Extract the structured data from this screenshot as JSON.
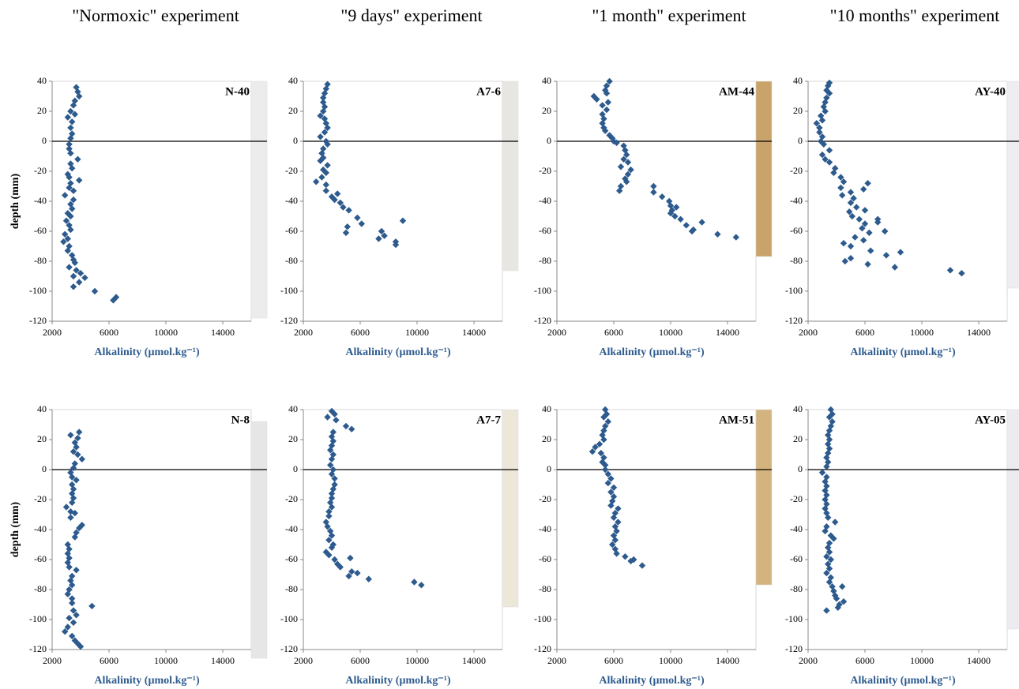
{
  "column_titles": [
    "\"Normoxic\" experiment",
    "\"9 days\" experiment",
    "\"1 month\" experiment",
    "\"10 months\" experiment"
  ],
  "chart_data": [
    {
      "type": "scatter",
      "title": "N-40",
      "y_label": "depth (mm)",
      "x_label": "Alkalinity (µmol.kg⁻¹)",
      "color": "#2e5b8e",
      "marker": "diamond",
      "xlim": [
        2000,
        16000
      ],
      "xticks": [
        2000,
        6000,
        10000,
        14000
      ],
      "ylim": [
        -120,
        40
      ],
      "yticks": [
        -120,
        -100,
        -80,
        -60,
        -40,
        -20,
        0,
        20,
        40
      ],
      "reference_line": 0,
      "x": [
        3700,
        3800,
        3900,
        3600,
        3500,
        3300,
        3600,
        3100,
        3400,
        3300,
        3400,
        3300,
        3200,
        3200,
        3300,
        3800,
        3300,
        3400,
        3100,
        3200,
        3900,
        3300,
        3200,
        3500,
        2900,
        3500,
        3300,
        3400,
        3100,
        3300,
        3000,
        3200,
        3300,
        2900,
        3100,
        2800,
        3200,
        3100,
        3400,
        3500,
        3600,
        3200,
        3700,
        4000,
        3500,
        4300,
        3900,
        3500,
        5000,
        6500,
        6300
      ],
      "values": [
        36,
        33,
        30,
        27,
        24,
        20,
        18,
        16,
        13,
        9,
        5,
        2,
        -2,
        -5,
        -8,
        -12,
        -15,
        -18,
        -22,
        -24,
        -26,
        -28,
        -31,
        -33,
        -36,
        -39,
        -42,
        -45,
        -48,
        -50,
        -53,
        -56,
        -59,
        -62,
        -65,
        -67,
        -70,
        -73,
        -76,
        -79,
        -81,
        -84,
        -86,
        -88,
        -90,
        -91,
        -94,
        -97,
        -100,
        -104,
        -106
      ]
    },
    {
      "type": "scatter",
      "title": "A7-6",
      "x_label": "Alkalinity (µmol.kg⁻¹)",
      "color": "#2e5b8e",
      "marker": "diamond",
      "xlim": [
        2000,
        16000
      ],
      "xticks": [
        2000,
        6000,
        10000,
        14000
      ],
      "ylim": [
        -120,
        40
      ],
      "yticks": [
        -120,
        -100,
        -80,
        -60,
        -40,
        -20,
        0,
        20,
        40
      ],
      "reference_line": 0,
      "x": [
        3700,
        3600,
        3500,
        3400,
        3400,
        3500,
        3400,
        3200,
        3500,
        3600,
        3700,
        3500,
        3200,
        3600,
        3700,
        3400,
        3300,
        3400,
        3200,
        3700,
        3400,
        3600,
        3300,
        2900,
        3600,
        3600,
        4000,
        4400,
        4200,
        4600,
        4800,
        5200,
        5800,
        6100,
        5100,
        5000,
        7500,
        7700,
        7300,
        8500,
        8500,
        9000
      ],
      "values": [
        38,
        35,
        32,
        29,
        26,
        23,
        20,
        17,
        15,
        12,
        9,
        6,
        3,
        0,
        -2,
        -5,
        -8,
        -11,
        -13,
        -16,
        -19,
        -21,
        -24,
        -27,
        -29,
        -33,
        -37,
        -35,
        -39,
        -41,
        -44,
        -46,
        -51,
        -55,
        -57,
        -61,
        -60,
        -63,
        -65,
        -67,
        -69,
        -53
      ]
    },
    {
      "type": "scatter",
      "title": "AM-44",
      "x_label": "Alkalinity (µmol.kg⁻¹)",
      "color": "#2e5b8e",
      "marker": "diamond",
      "xlim": [
        2000,
        16000
      ],
      "xticks": [
        2000,
        6000,
        10000,
        14000
      ],
      "ylim": [
        -120,
        40
      ],
      "yticks": [
        -120,
        -100,
        -80,
        -60,
        -40,
        -20,
        0,
        20,
        40
      ],
      "reference_line": 0,
      "x": [
        5700,
        5500,
        5400,
        5500,
        4600,
        4800,
        5600,
        5200,
        5500,
        5200,
        5300,
        5200,
        5300,
        5400,
        5700,
        5900,
        6000,
        6200,
        6700,
        6800,
        6900,
        6700,
        7000,
        6500,
        7200,
        7000,
        6800,
        6900,
        6500,
        6400,
        8800,
        8800,
        9400,
        9900,
        10000,
        10400,
        10100,
        10000,
        10300,
        10700,
        11100,
        12200,
        11600,
        11500,
        13300,
        14600
      ],
      "values": [
        40,
        37,
        34,
        32,
        30,
        28,
        26,
        24,
        21,
        18,
        15,
        12,
        9,
        7,
        4,
        2,
        0,
        -1,
        -3,
        -6,
        -9,
        -12,
        -14,
        -17,
        -19,
        -22,
        -25,
        -27,
        -30,
        -33,
        -30,
        -34,
        -37,
        -40,
        -43,
        -44,
        -46,
        -48,
        -50,
        -52,
        -56,
        -54,
        -59,
        -60,
        -62,
        -64
      ]
    },
    {
      "type": "scatter",
      "title": "AY-40",
      "x_label": "Alkalinity (µmol.kg⁻¹)",
      "color": "#2e5b8e",
      "marker": "diamond",
      "xlim": [
        2000,
        16000
      ],
      "xticks": [
        2000,
        6000,
        10000,
        14000
      ],
      "ylim": [
        -120,
        40
      ],
      "yticks": [
        -120,
        -100,
        -80,
        -60,
        -40,
        -20,
        0,
        20,
        40
      ],
      "reference_line": 0,
      "x": [
        3500,
        3400,
        3300,
        3500,
        3300,
        3200,
        3100,
        3200,
        2900,
        3000,
        2600,
        2800,
        2800,
        3000,
        2900,
        3100,
        3500,
        3000,
        3200,
        3500,
        3900,
        3800,
        4300,
        4500,
        6200,
        4300,
        5900,
        5000,
        4400,
        5200,
        5000,
        5400,
        4900,
        6000,
        5100,
        5600,
        6000,
        6900,
        6900,
        5800,
        7400,
        6300,
        5300,
        4500,
        5900,
        5000,
        6400,
        8500,
        7500,
        5000,
        4600,
        6200,
        8100,
        12000,
        12800
      ],
      "values": [
        39,
        37,
        34,
        32,
        29,
        26,
        23,
        20,
        17,
        14,
        12,
        9,
        6,
        3,
        0,
        -2,
        -6,
        -9,
        -12,
        -14,
        -18,
        -21,
        -24,
        -27,
        -28,
        -31,
        -32,
        -34,
        -36,
        -38,
        -41,
        -44,
        -47,
        -46,
        -50,
        -52,
        -55,
        -52,
        -54,
        -58,
        -60,
        -61,
        -64,
        -68,
        -66,
        -70,
        -73,
        -74,
        -76,
        -78,
        -80,
        -82,
        -84,
        -86,
        -88
      ]
    },
    {
      "type": "scatter",
      "title": "N-8",
      "y_label": "depth (mm)",
      "x_label": "Alkalinity (µmol.kg⁻¹)",
      "color": "#2e5b8e",
      "marker": "diamond",
      "xlim": [
        2000,
        16000
      ],
      "xticks": [
        2000,
        6000,
        10000,
        14000
      ],
      "ylim": [
        -120,
        40
      ],
      "yticks": [
        -120,
        -100,
        -80,
        -60,
        -40,
        -20,
        0,
        20,
        40
      ],
      "reference_line": 0,
      "x": [
        3900,
        3300,
        3800,
        3600,
        3700,
        3500,
        3800,
        4100,
        3600,
        3500,
        3300,
        3400,
        3700,
        3400,
        3500,
        3400,
        3500,
        3400,
        3000,
        3300,
        3600,
        3300,
        4100,
        3900,
        3700,
        3600,
        3100,
        3200,
        3100,
        3200,
        3100,
        3200,
        3700,
        3400,
        3300,
        3400,
        3200,
        3100,
        3400,
        3400,
        4800,
        3500,
        3700,
        3200,
        3500,
        3100,
        2900,
        3400,
        3600,
        3800,
        4000
      ],
      "values": [
        25,
        23,
        21,
        18,
        15,
        12,
        10,
        7,
        4,
        1,
        -2,
        -5,
        -7,
        -10,
        -13,
        -16,
        -19,
        -22,
        -25,
        -28,
        -29,
        -32,
        -37,
        -39,
        -42,
        -45,
        -50,
        -53,
        -56,
        -59,
        -62,
        -65,
        -67,
        -71,
        -74,
        -77,
        -80,
        -83,
        -86,
        -89,
        -91,
        -94,
        -97,
        -99,
        -102,
        -105,
        -108,
        -111,
        -114,
        -116,
        -118
      ]
    },
    {
      "type": "scatter",
      "title": "A7-7",
      "x_label": "Alkalinity (µmol.kg⁻¹)",
      "color": "#2e5b8e",
      "marker": "diamond",
      "xlim": [
        2000,
        16000
      ],
      "xticks": [
        2000,
        6000,
        10000,
        14000
      ],
      "ylim": [
        -120,
        40
      ],
      "yticks": [
        -120,
        -100,
        -80,
        -60,
        -40,
        -20,
        0,
        20,
        40
      ],
      "reference_line": 0,
      "x": [
        4000,
        4200,
        3700,
        4300,
        5000,
        5400,
        4100,
        4000,
        4100,
        4000,
        3900,
        4100,
        4000,
        3900,
        4100,
        4000,
        4200,
        4200,
        4100,
        4000,
        4000,
        3900,
        4000,
        3800,
        3800,
        3600,
        3700,
        3900,
        4000,
        3800,
        4100,
        4000,
        3600,
        3800,
        5300,
        4200,
        4400,
        4600,
        5400,
        5800,
        5200,
        6600,
        9800,
        10300
      ],
      "values": [
        39,
        37,
        35,
        33,
        29,
        27,
        25,
        22,
        19,
        16,
        13,
        10,
        7,
        3,
        0,
        -3,
        -6,
        -10,
        -13,
        -16,
        -19,
        -22,
        -25,
        -28,
        -31,
        -35,
        -38,
        -41,
        -44,
        -47,
        -50,
        -52,
        -55,
        -57,
        -59,
        -60,
        -63,
        -65,
        -68,
        -69,
        -71,
        -73,
        -75,
        -77
      ]
    },
    {
      "type": "scatter",
      "title": "AM-51",
      "x_label": "Alkalinity (µmol.kg⁻¹)",
      "color": "#2e5b8e",
      "marker": "diamond",
      "xlim": [
        2000,
        16000
      ],
      "xticks": [
        2000,
        6000,
        10000,
        14000
      ],
      "ylim": [
        -120,
        40
      ],
      "yticks": [
        -120,
        -100,
        -80,
        -60,
        -40,
        -20,
        0,
        20,
        40
      ],
      "reference_line": 0,
      "x": [
        5400,
        5500,
        5300,
        5600,
        5400,
        5300,
        5200,
        5300,
        5000,
        4700,
        4500,
        5100,
        5300,
        5200,
        5400,
        5400,
        5600,
        5800,
        5600,
        6000,
        5800,
        6000,
        5900,
        5800,
        6300,
        6100,
        6000,
        6300,
        6100,
        6200,
        6000,
        6100,
        5900,
        6100,
        6200,
        6800,
        7200,
        7400,
        8000
      ],
      "values": [
        40,
        37,
        35,
        32,
        29,
        26,
        23,
        20,
        17,
        15,
        12,
        11,
        8,
        5,
        3,
        0,
        -3,
        -6,
        -9,
        -12,
        -15,
        -18,
        -21,
        -24,
        -26,
        -29,
        -32,
        -35,
        -38,
        -41,
        -44,
        -47,
        -50,
        -53,
        -56,
        -58,
        -61,
        -60,
        -64
      ]
    },
    {
      "type": "scatter",
      "title": "AY-05",
      "x_label": "Alkalinity (µmol.kg⁻¹)",
      "color": "#2e5b8e",
      "marker": "diamond",
      "xlim": [
        2000,
        16000
      ],
      "xticks": [
        2000,
        6000,
        10000,
        14000
      ],
      "ylim": [
        -120,
        40
      ],
      "yticks": [
        -120,
        -100,
        -80,
        -60,
        -40,
        -20,
        0,
        20,
        40
      ],
      "reference_line": 0,
      "x": [
        3600,
        3700,
        3500,
        3700,
        3600,
        3500,
        3400,
        3500,
        3400,
        3500,
        3400,
        3300,
        3400,
        3300,
        3000,
        3300,
        3200,
        3300,
        3200,
        3300,
        3200,
        3300,
        3200,
        3300,
        3400,
        3900,
        3300,
        3200,
        3600,
        3800,
        3500,
        3400,
        3500,
        3300,
        3600,
        3400,
        3500,
        3300,
        3600,
        3500,
        3700,
        4400,
        3800,
        3900,
        4000,
        4500,
        4200,
        4100,
        3300
      ],
      "values": [
        40,
        37,
        35,
        32,
        29,
        26,
        23,
        20,
        17,
        14,
        11,
        8,
        5,
        2,
        -2,
        -5,
        -8,
        -11,
        -14,
        -17,
        -20,
        -23,
        -26,
        -29,
        -32,
        -35,
        -38,
        -41,
        -44,
        -46,
        -49,
        -52,
        -55,
        -58,
        -60,
        -63,
        -66,
        -69,
        -72,
        -75,
        -78,
        -78,
        -81,
        -84,
        -86,
        -88,
        -90,
        -92,
        -94
      ]
    }
  ]
}
